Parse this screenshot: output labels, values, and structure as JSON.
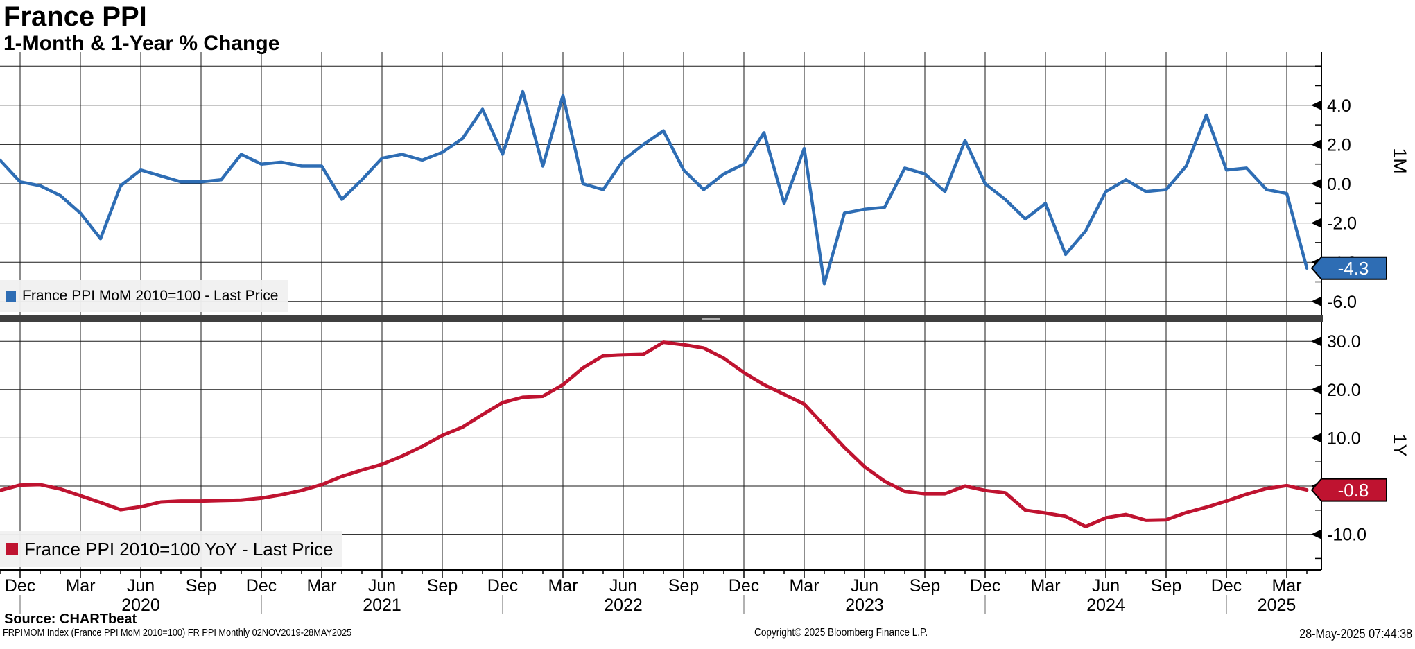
{
  "header": {
    "title": "France PPI",
    "subtitle": "1-Month & 1-Year % Change"
  },
  "colors": {
    "mom_line": "#2e6db4",
    "yoy_line": "#bf1330",
    "grid": "#1a1a1a",
    "axis": "#000000",
    "divider": "#3f3f3f",
    "divider_grip": "#b0b0b0",
    "year_separator": "#999999",
    "legend_background": "#f0f0f0",
    "badge_text": "#ffffff"
  },
  "chart_data": [
    {
      "type": "line",
      "name": "France PPI MoM",
      "legend_label": "France PPI MoM 2010=100 - Last Price",
      "axis_label": "1M",
      "legend_position": "bottom-left",
      "grid": true,
      "color": "#2e6db4",
      "ylim": [
        -6.7,
        6.7
      ],
      "yticks": [
        4.0,
        2.0,
        0.0,
        -2.0,
        -4.0,
        -6.0
      ],
      "ytick_labels": [
        "4.0",
        "2.0",
        "0.0",
        "-2.0",
        "-4.0",
        "-6.0"
      ],
      "minor_yticks": [
        6.0,
        5.0,
        3.0,
        1.0,
        -1.0,
        -3.0,
        -5.0
      ],
      "extra_gridlines": [
        6.0
      ],
      "last_price": -4.3,
      "last_price_label": "-4.3",
      "x": [
        "2019-11",
        "2019-12",
        "2020-01",
        "2020-02",
        "2020-03",
        "2020-04",
        "2020-05",
        "2020-06",
        "2020-07",
        "2020-08",
        "2020-09",
        "2020-10",
        "2020-11",
        "2020-12",
        "2021-01",
        "2021-02",
        "2021-03",
        "2021-04",
        "2021-05",
        "2021-06",
        "2021-07",
        "2021-08",
        "2021-09",
        "2021-10",
        "2021-11",
        "2021-12",
        "2022-01",
        "2022-02",
        "2022-03",
        "2022-04",
        "2022-05",
        "2022-06",
        "2022-07",
        "2022-08",
        "2022-09",
        "2022-10",
        "2022-11",
        "2022-12",
        "2023-01",
        "2023-02",
        "2023-03",
        "2023-04",
        "2023-05",
        "2023-06",
        "2023-07",
        "2023-08",
        "2023-09",
        "2023-10",
        "2023-11",
        "2023-12",
        "2024-01",
        "2024-02",
        "2024-03",
        "2024-04",
        "2024-05",
        "2024-06",
        "2024-07",
        "2024-08",
        "2024-09",
        "2024-10",
        "2024-11",
        "2024-12",
        "2025-01",
        "2025-02",
        "2025-03",
        "2025-04"
      ],
      "values": [
        1.2,
        0.1,
        -0.1,
        -0.6,
        -1.5,
        -2.8,
        -0.1,
        0.7,
        0.4,
        0.1,
        0.1,
        0.2,
        1.5,
        1.0,
        1.1,
        0.9,
        0.9,
        -0.8,
        0.2,
        1.3,
        1.5,
        1.2,
        1.6,
        2.3,
        3.8,
        1.5,
        4.7,
        0.9,
        4.5,
        0.0,
        -0.3,
        1.2,
        2.0,
        2.7,
        0.7,
        -0.3,
        0.5,
        1.0,
        2.6,
        -1.0,
        1.8,
        -5.1,
        -1.5,
        -1.3,
        -1.2,
        0.8,
        0.5,
        -0.4,
        2.2,
        0.0,
        -0.8,
        -1.8,
        -1.0,
        -3.6,
        -2.4,
        -0.4,
        0.2,
        -0.4,
        -0.3,
        0.9,
        3.5,
        0.7,
        0.8,
        -0.3,
        -0.5,
        -4.3
      ]
    },
    {
      "type": "line",
      "name": "France PPI YoY",
      "legend_label": "France PPI 2010=100 YoY - Last Price",
      "axis_label": "1Y",
      "legend_position": "bottom-left",
      "grid": true,
      "color": "#bf1330",
      "ylim": [
        -17.0,
        34.0
      ],
      "yticks": [
        30.0,
        20.0,
        10.0,
        0.0,
        -10.0
      ],
      "ytick_labels": [
        "30.0",
        "20.0",
        "10.0",
        "0.0",
        "-10.0"
      ],
      "minor_yticks": [
        25.0,
        15.0,
        5.0,
        -5.0,
        -15.0
      ],
      "extra_gridlines": [],
      "last_price": -0.8,
      "last_price_label": "-0.8",
      "x": [
        "2019-11",
        "2019-12",
        "2020-01",
        "2020-02",
        "2020-03",
        "2020-04",
        "2020-05",
        "2020-06",
        "2020-07",
        "2020-08",
        "2020-09",
        "2020-10",
        "2020-11",
        "2020-12",
        "2021-01",
        "2021-02",
        "2021-03",
        "2021-04",
        "2021-05",
        "2021-06",
        "2021-07",
        "2021-08",
        "2021-09",
        "2021-10",
        "2021-11",
        "2021-12",
        "2022-01",
        "2022-02",
        "2022-03",
        "2022-04",
        "2022-05",
        "2022-06",
        "2022-07",
        "2022-08",
        "2022-09",
        "2022-10",
        "2022-11",
        "2022-12",
        "2023-01",
        "2023-02",
        "2023-03",
        "2023-04",
        "2023-05",
        "2023-06",
        "2023-07",
        "2023-08",
        "2023-09",
        "2023-10",
        "2023-11",
        "2023-12",
        "2024-01",
        "2024-02",
        "2024-03",
        "2024-04",
        "2024-05",
        "2024-06",
        "2024-07",
        "2024-08",
        "2024-09",
        "2024-10",
        "2024-11",
        "2024-12",
        "2025-01",
        "2025-02",
        "2025-03",
        "2025-04"
      ],
      "values": [
        -0.9,
        0.2,
        0.3,
        -0.6,
        -2.0,
        -3.4,
        -4.9,
        -4.3,
        -3.3,
        -3.1,
        -3.1,
        -3.0,
        -2.9,
        -2.5,
        -1.8,
        -0.9,
        0.3,
        2.0,
        3.3,
        4.5,
        6.2,
        8.2,
        10.5,
        12.2,
        14.8,
        17.3,
        18.4,
        18.6,
        21.0,
        24.5,
        27.0,
        27.2,
        27.3,
        29.8,
        29.3,
        28.6,
        26.5,
        23.5,
        21.0,
        19.0,
        17.0,
        12.5,
        8.0,
        4.0,
        1.0,
        -1.1,
        -1.6,
        -1.6,
        0.0,
        -0.9,
        -1.4,
        -5.0,
        -5.6,
        -6.3,
        -8.4,
        -6.6,
        -5.9,
        -7.1,
        -7.0,
        -5.5,
        -4.4,
        -3.1,
        -1.7,
        -0.5,
        0.1,
        -0.8
      ]
    }
  ],
  "x_axis": {
    "month_labels": [
      {
        "m": 1,
        "label": "Dec"
      },
      {
        "m": 4,
        "label": "Mar"
      },
      {
        "m": 7,
        "label": "Jun"
      },
      {
        "m": 10,
        "label": "Sep"
      },
      {
        "m": 13,
        "label": "Dec"
      },
      {
        "m": 16,
        "label": "Mar"
      },
      {
        "m": 19,
        "label": "Jun"
      },
      {
        "m": 22,
        "label": "Sep"
      },
      {
        "m": 25,
        "label": "Dec"
      },
      {
        "m": 28,
        "label": "Mar"
      },
      {
        "m": 31,
        "label": "Jun"
      },
      {
        "m": 34,
        "label": "Sep"
      },
      {
        "m": 37,
        "label": "Dec"
      },
      {
        "m": 40,
        "label": "Mar"
      },
      {
        "m": 43,
        "label": "Jun"
      },
      {
        "m": 46,
        "label": "Sep"
      },
      {
        "m": 49,
        "label": "Dec"
      },
      {
        "m": 52,
        "label": "Mar"
      },
      {
        "m": 55,
        "label": "Jun"
      },
      {
        "m": 58,
        "label": "Sep"
      },
      {
        "m": 61,
        "label": "Dec"
      },
      {
        "m": 64,
        "label": "Mar"
      }
    ],
    "year_labels": [
      {
        "m": 7,
        "label": "2020"
      },
      {
        "m": 19,
        "label": "2021"
      },
      {
        "m": 31,
        "label": "2022"
      },
      {
        "m": 43,
        "label": "2023"
      },
      {
        "m": 55,
        "label": "2024"
      },
      {
        "m": 63.5,
        "label": "2025"
      }
    ],
    "year_separator_months": [
      1,
      13,
      25,
      37,
      49,
      61
    ]
  },
  "footer": {
    "source": "Source: CHARTbeat",
    "ticker_line": "FRPIMOM Index (France PPI MoM 2010=100) FR PPI  Monthly 02NOV2019-28MAY2025",
    "copyright": "Copyright© 2025 Bloomberg Finance L.P.",
    "timestamp": "28-May-2025 07:44:38"
  }
}
